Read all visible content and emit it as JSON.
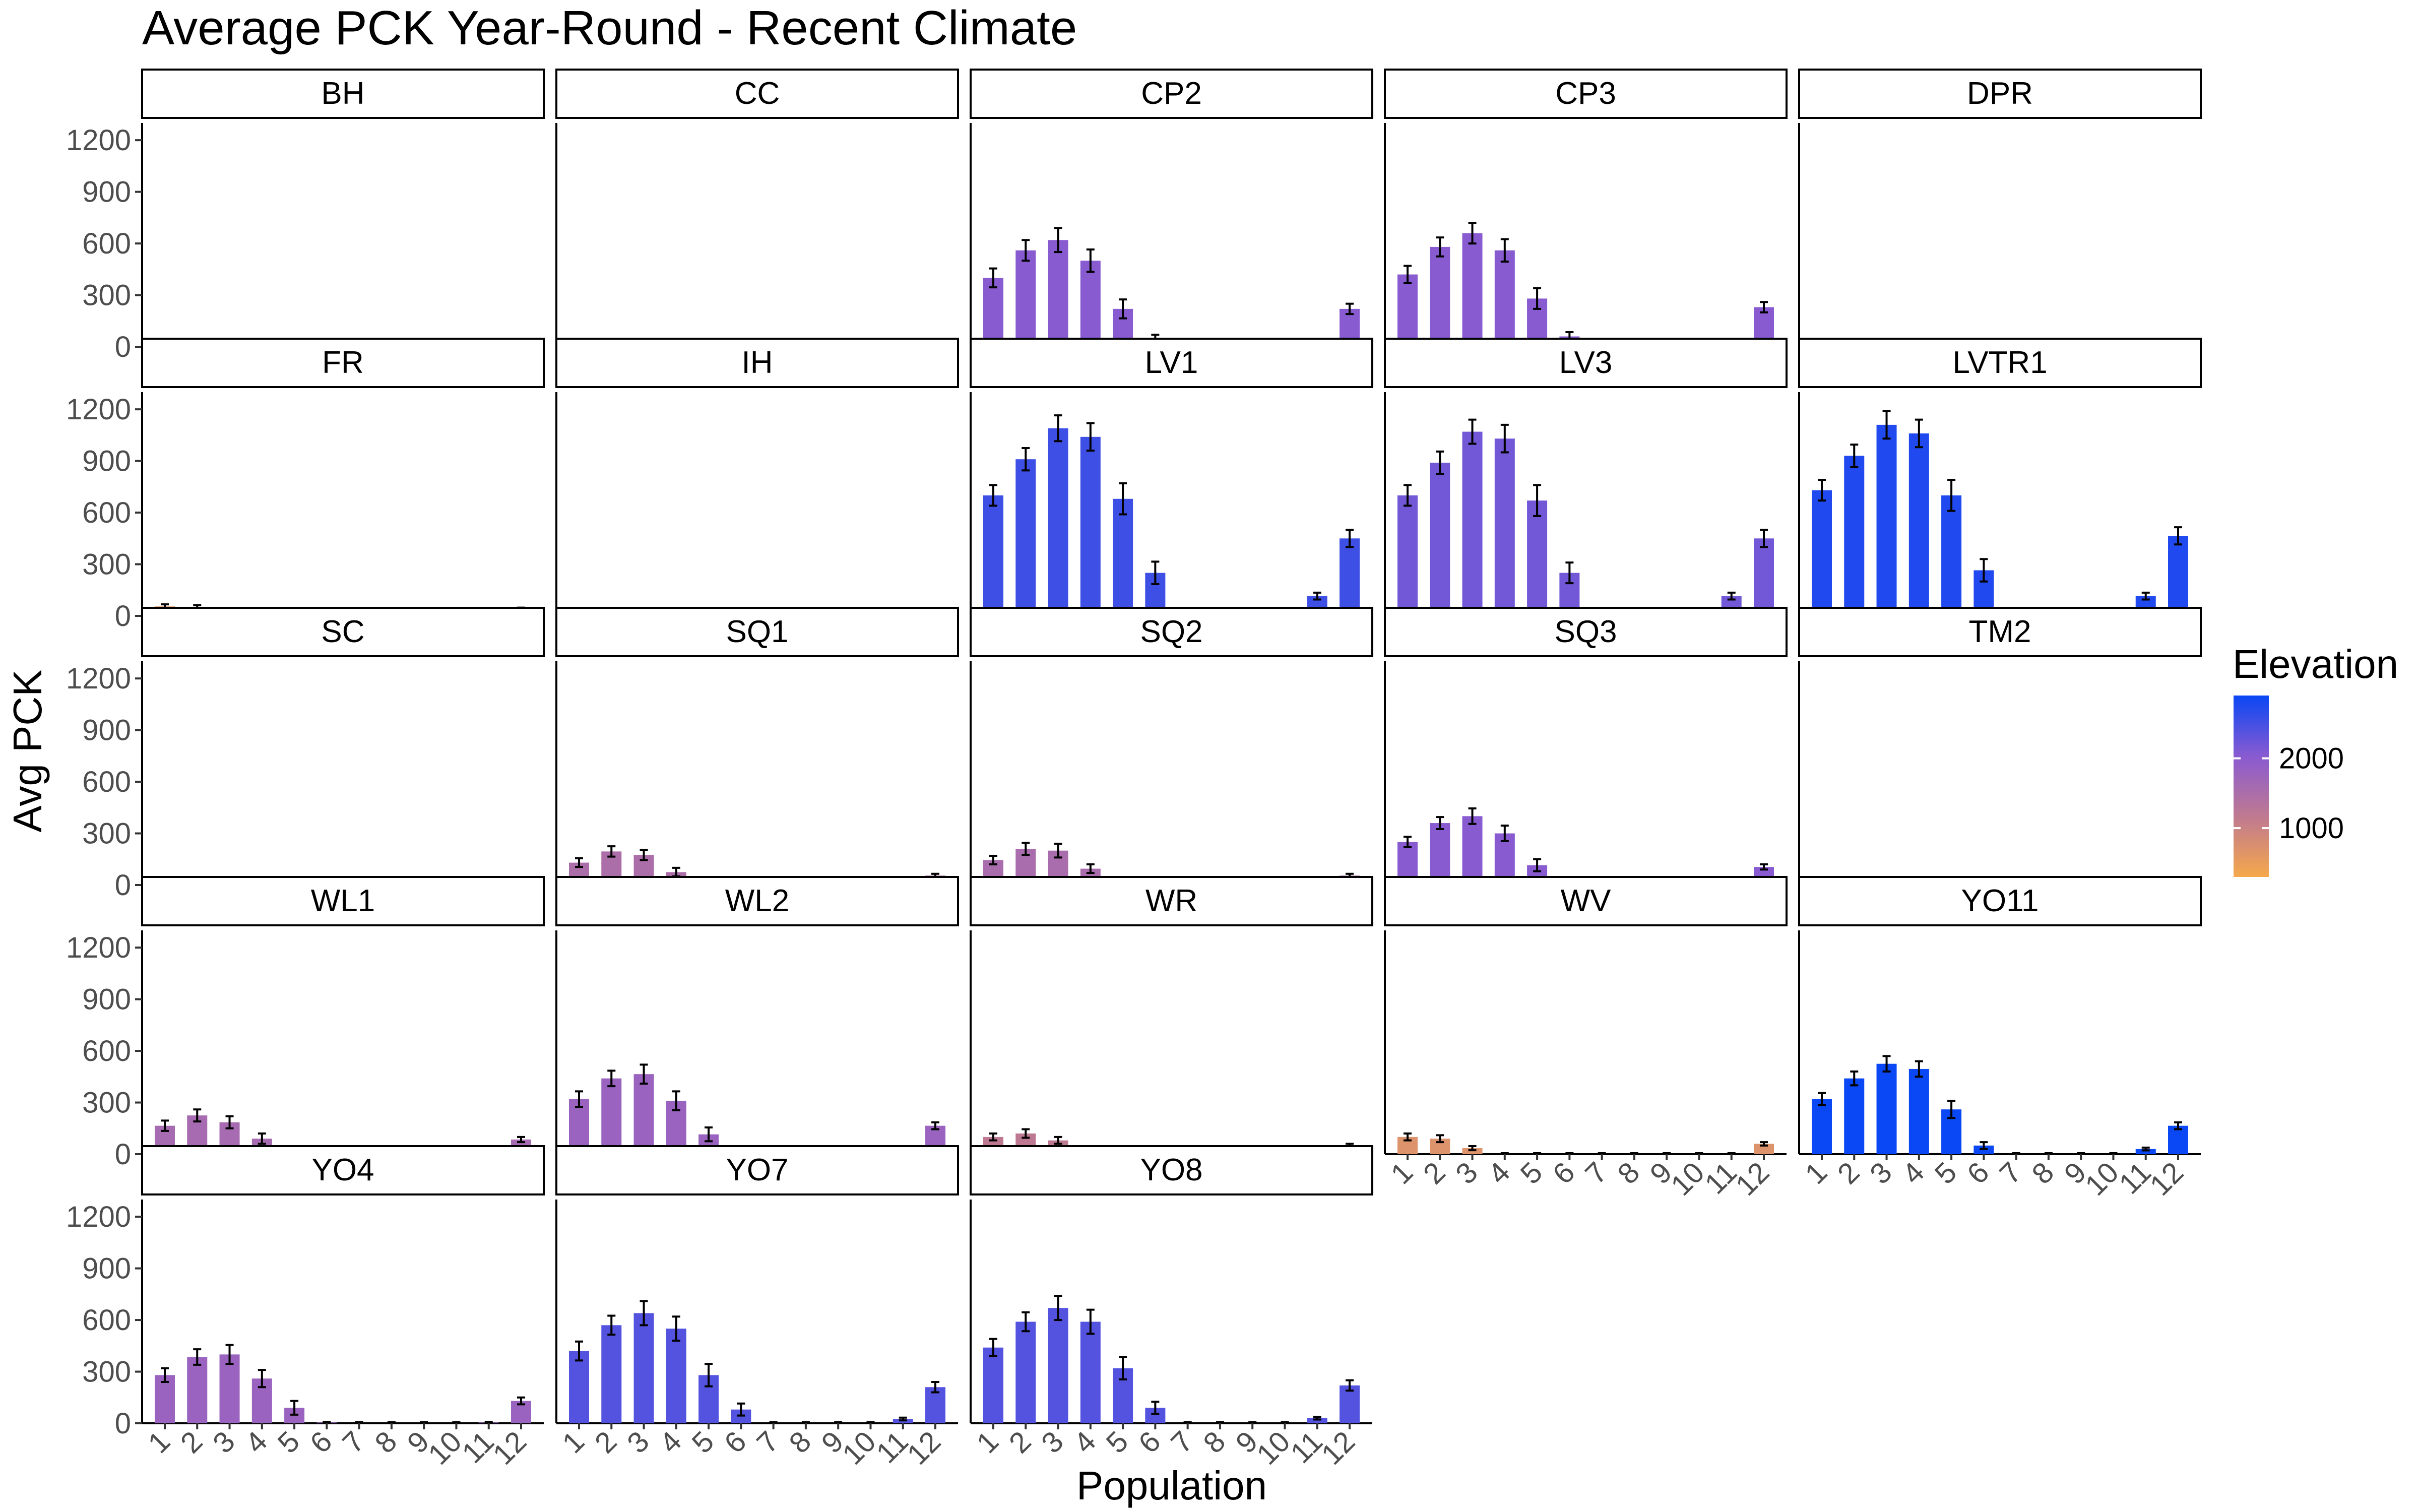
{
  "chart_data": {
    "type": "bar",
    "title": "Average PCK Year-Round - Recent Climate",
    "xlabel": "Population",
    "ylabel": "Avg PCK",
    "ylim": [
      0,
      1300
    ],
    "y_ticks": [
      0,
      300,
      600,
      900,
      1200
    ],
    "categories": [
      "1",
      "2",
      "3",
      "4",
      "5",
      "6",
      "7",
      "8",
      "9",
      "10",
      "11",
      "12"
    ],
    "grid": false,
    "legend": {
      "title": "Elevation",
      "position": "right",
      "ticks": [
        1000,
        2000
      ],
      "range": [
        300,
        2900
      ],
      "colors": [
        "#f5a84b",
        "#c07a90",
        "#8b5bd0",
        "#0a47f5"
      ]
    },
    "panels": [
      {
        "name": "BH",
        "elevation": 900,
        "values": [
          0,
          0,
          0,
          0,
          0,
          0,
          0,
          0,
          0,
          0,
          0,
          0
        ],
        "errors": [
          0,
          0,
          0,
          0,
          0,
          0,
          0,
          0,
          0,
          0,
          0,
          0
        ]
      },
      {
        "name": "CC",
        "elevation": 1200,
        "values": [
          0,
          0,
          0,
          0,
          0,
          0,
          0,
          0,
          0,
          0,
          0,
          0
        ],
        "errors": [
          0,
          0,
          0,
          0,
          0,
          0,
          0,
          0,
          0,
          0,
          0,
          0
        ]
      },
      {
        "name": "CP2",
        "elevation": 2050,
        "values": [
          400,
          560,
          620,
          500,
          220,
          45,
          0,
          0,
          0,
          0,
          30,
          220
        ],
        "errors": [
          55,
          60,
          70,
          65,
          55,
          25,
          0,
          0,
          0,
          0,
          10,
          30
        ]
      },
      {
        "name": "CP3",
        "elevation": 2050,
        "values": [
          420,
          580,
          660,
          560,
          280,
          60,
          0,
          0,
          0,
          0,
          35,
          230
        ],
        "errors": [
          50,
          55,
          60,
          65,
          60,
          25,
          0,
          0,
          0,
          0,
          10,
          30
        ]
      },
      {
        "name": "DPR",
        "elevation": 600,
        "values": [
          30,
          35,
          20,
          0,
          0,
          0,
          0,
          0,
          0,
          0,
          0,
          15
        ],
        "errors": [
          8,
          10,
          6,
          0,
          0,
          0,
          0,
          0,
          0,
          0,
          0,
          5
        ]
      },
      {
        "name": "FR",
        "elevation": 600,
        "values": [
          55,
          50,
          25,
          0,
          0,
          0,
          0,
          0,
          0,
          0,
          0,
          40
        ],
        "errors": [
          12,
          12,
          8,
          0,
          0,
          0,
          0,
          0,
          0,
          0,
          0,
          8
        ]
      },
      {
        "name": "IH",
        "elevation": 800,
        "values": [
          0,
          0,
          0,
          0,
          0,
          0,
          0,
          0,
          0,
          0,
          0,
          0
        ],
        "errors": [
          0,
          0,
          0,
          0,
          0,
          0,
          0,
          0,
          0,
          0,
          0,
          0
        ]
      },
      {
        "name": "LV1",
        "elevation": 2550,
        "values": [
          700,
          910,
          1090,
          1040,
          680,
          250,
          20,
          0,
          0,
          0,
          115,
          450
        ],
        "errors": [
          60,
          65,
          75,
          80,
          90,
          65,
          10,
          0,
          0,
          0,
          20,
          50
        ]
      },
      {
        "name": "LV3",
        "elevation": 2200,
        "values": [
          700,
          890,
          1070,
          1030,
          670,
          250,
          20,
          0,
          0,
          0,
          115,
          450
        ],
        "errors": [
          60,
          65,
          70,
          80,
          90,
          60,
          10,
          0,
          0,
          0,
          20,
          50
        ]
      },
      {
        "name": "LVTR1",
        "elevation": 2750,
        "values": [
          730,
          930,
          1110,
          1060,
          700,
          265,
          25,
          0,
          0,
          0,
          115,
          465
        ],
        "errors": [
          60,
          65,
          80,
          80,
          90,
          65,
          10,
          0,
          0,
          0,
          20,
          50
        ]
      },
      {
        "name": "SC",
        "elevation": 1100,
        "values": [
          0,
          0,
          0,
          0,
          0,
          0,
          0,
          0,
          0,
          0,
          0,
          0
        ],
        "errors": [
          0,
          0,
          0,
          0,
          0,
          0,
          0,
          0,
          0,
          0,
          0,
          0
        ]
      },
      {
        "name": "SQ1",
        "elevation": 1500,
        "values": [
          130,
          195,
          175,
          75,
          20,
          0,
          0,
          0,
          0,
          0,
          0,
          55
        ],
        "errors": [
          25,
          30,
          30,
          25,
          8,
          0,
          0,
          0,
          0,
          0,
          0,
          10
        ]
      },
      {
        "name": "SQ2",
        "elevation": 1550,
        "values": [
          145,
          210,
          200,
          95,
          25,
          0,
          0,
          0,
          0,
          0,
          0,
          55
        ],
        "errors": [
          25,
          35,
          40,
          25,
          8,
          0,
          0,
          0,
          0,
          0,
          0,
          10
        ]
      },
      {
        "name": "SQ3",
        "elevation": 2050,
        "values": [
          250,
          360,
          400,
          300,
          115,
          25,
          0,
          0,
          0,
          0,
          5,
          105
        ],
        "errors": [
          30,
          35,
          45,
          45,
          35,
          10,
          0,
          0,
          0,
          0,
          3,
          15
        ]
      },
      {
        "name": "TM2",
        "elevation": 1200,
        "values": [
          0,
          0,
          0,
          0,
          0,
          0,
          0,
          0,
          0,
          0,
          0,
          0
        ],
        "errors": [
          0,
          0,
          0,
          0,
          0,
          0,
          0,
          0,
          0,
          0,
          0,
          0
        ]
      },
      {
        "name": "WL1",
        "elevation": 1600,
        "values": [
          165,
          225,
          185,
          90,
          20,
          5,
          0,
          0,
          0,
          0,
          5,
          85
        ],
        "errors": [
          30,
          35,
          35,
          30,
          8,
          3,
          0,
          0,
          0,
          0,
          3,
          15
        ]
      },
      {
        "name": "WL2",
        "elevation": 1800,
        "values": [
          320,
          440,
          465,
          310,
          115,
          25,
          0,
          0,
          0,
          0,
          15,
          165
        ],
        "errors": [
          45,
          45,
          55,
          55,
          40,
          10,
          0,
          0,
          0,
          0,
          5,
          20
        ]
      },
      {
        "name": "WR",
        "elevation": 1200,
        "values": [
          100,
          120,
          80,
          10,
          0,
          0,
          0,
          0,
          0,
          0,
          0,
          50
        ],
        "errors": [
          20,
          25,
          20,
          5,
          0,
          0,
          0,
          0,
          0,
          0,
          0,
          10
        ]
      },
      {
        "name": "WV",
        "elevation": 700,
        "values": [
          100,
          90,
          35,
          0,
          0,
          0,
          0,
          0,
          0,
          0,
          0,
          60
        ],
        "errors": [
          20,
          20,
          12,
          0,
          0,
          0,
          0,
          0,
          0,
          0,
          0,
          10
        ]
      },
      {
        "name": "YO11",
        "elevation": 2900,
        "values": [
          320,
          440,
          525,
          495,
          260,
          50,
          0,
          0,
          0,
          0,
          30,
          165
        ],
        "errors": [
          35,
          40,
          45,
          45,
          50,
          20,
          0,
          0,
          0,
          0,
          8,
          20
        ]
      },
      {
        "name": "YO4",
        "elevation": 1800,
        "values": [
          280,
          385,
          400,
          260,
          90,
          5,
          0,
          0,
          0,
          0,
          5,
          130
        ],
        "errors": [
          40,
          45,
          55,
          50,
          40,
          3,
          0,
          0,
          0,
          0,
          3,
          20
        ]
      },
      {
        "name": "YO7",
        "elevation": 2400,
        "values": [
          420,
          570,
          640,
          550,
          280,
          80,
          0,
          0,
          0,
          0,
          25,
          210
        ],
        "errors": [
          55,
          55,
          70,
          70,
          65,
          35,
          0,
          0,
          0,
          0,
          8,
          30
        ]
      },
      {
        "name": "YO8",
        "elevation": 2400,
        "values": [
          440,
          590,
          670,
          590,
          320,
          90,
          0,
          0,
          0,
          0,
          30,
          220
        ],
        "errors": [
          50,
          55,
          70,
          70,
          65,
          35,
          0,
          0,
          0,
          0,
          8,
          30
        ]
      }
    ]
  }
}
